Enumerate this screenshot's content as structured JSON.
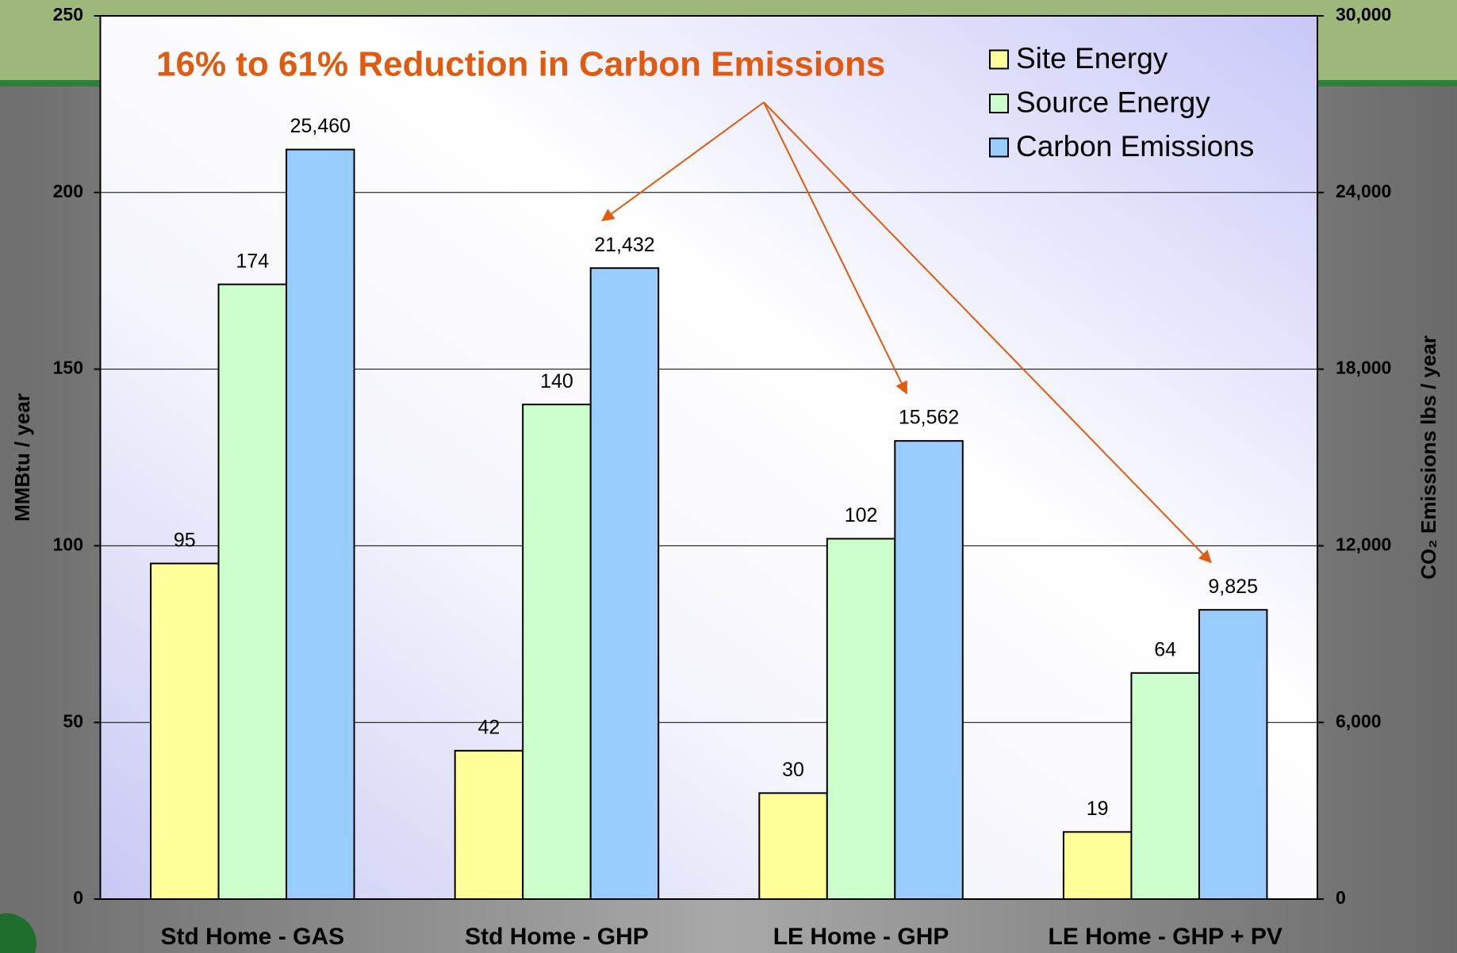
{
  "chart_data": {
    "type": "bar",
    "title": "16% to 61% Reduction in Carbon Emissions",
    "categories": [
      "Std Home - GAS",
      "Std Home - GHP",
      "LE Home - GHP",
      "LE Home - GHP + PV"
    ],
    "series": [
      {
        "name": "Site Energy",
        "color": "#ffff99",
        "values": [
          95,
          42,
          30,
          19
        ]
      },
      {
        "name": "Source Energy",
        "color": "#ccffcc",
        "values": [
          174,
          140,
          102,
          64
        ]
      },
      {
        "name": "Carbon Emissions",
        "color": "#99ccff",
        "axis": "y2",
        "values": [
          25460,
          21432,
          15562,
          9825
        ],
        "value_labels": [
          "25,460",
          "21,432",
          "15,562",
          "9,825"
        ]
      }
    ],
    "y_label": "MMBtu / year",
    "y2_label": "CO₂ Emissions lbs / year",
    "ylim": [
      0,
      250
    ],
    "yticks": [
      0,
      50,
      100,
      150,
      200,
      250
    ],
    "y2lim": [
      0,
      30000
    ],
    "y2ticks": [
      0,
      {
        "value": 6000,
        "label": "6,000"
      },
      {
        "value": 12000,
        "label": "12,000"
      },
      {
        "value": 18000,
        "label": "18,000"
      },
      {
        "value": 24000,
        "label": "24,000"
      },
      {
        "value": 30000,
        "label": "30,000"
      }
    ],
    "grid": true,
    "legend": "upper right"
  }
}
